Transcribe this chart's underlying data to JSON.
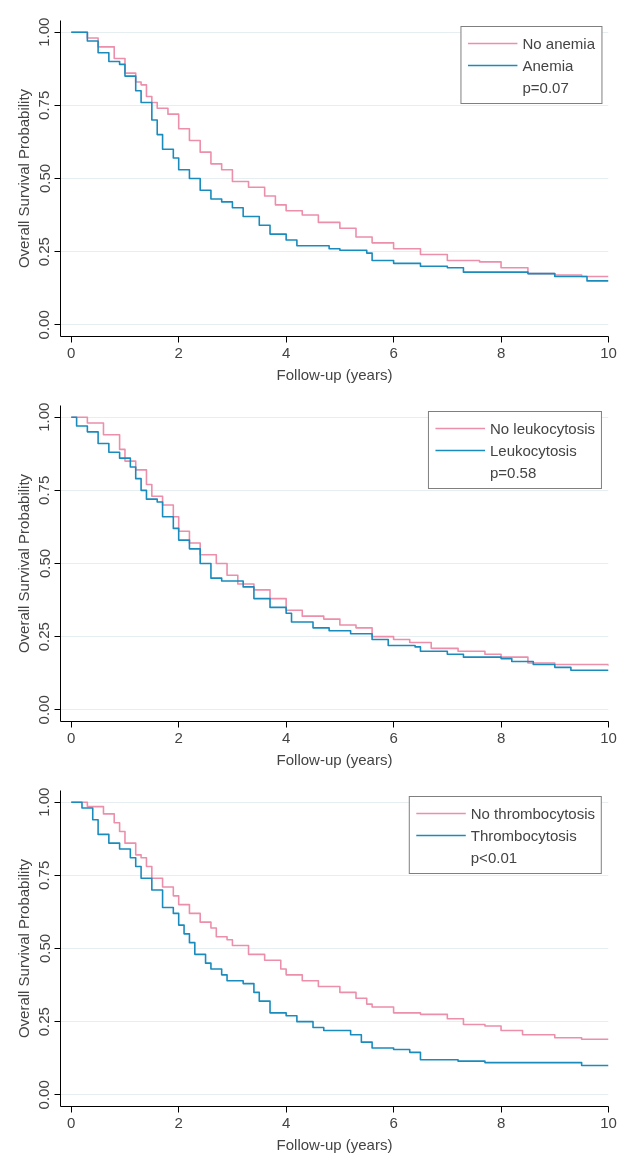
{
  "chart_data": [
    {
      "type": "step",
      "ylabel": "Overall Survival Probability",
      "xlabel": "Follow-up (years)",
      "xlim": [
        -0.2,
        10
      ],
      "ylim": [
        -0.04,
        1.04
      ],
      "xticks": [
        0,
        2,
        4,
        6,
        8,
        10
      ],
      "yticks": [
        {
          "value": 0,
          "label": "0.00"
        },
        {
          "value": 0.25,
          "label": "0.25"
        },
        {
          "value": 0.5,
          "label": "0.50"
        },
        {
          "value": 0.75,
          "label": "0.75"
        },
        {
          "value": 1,
          "label": "1.00"
        }
      ],
      "grid": "y",
      "legend": "top right",
      "annotations": [
        "p=0.07"
      ],
      "series": [
        {
          "name": "No anemia",
          "color": "#ec8fab",
          "x": [
            0,
            0.3,
            0.5,
            0.8,
            1.0,
            1.2,
            1.3,
            1.4,
            1.5,
            1.6,
            1.8,
            2.0,
            2.2,
            2.4,
            2.6,
            2.8,
            3.0,
            3.3,
            3.6,
            3.8,
            4.0,
            4.3,
            4.6,
            5.0,
            5.3,
            5.6,
            6.0,
            6.5,
            7.0,
            7.6,
            8.0,
            8.5,
            9.0,
            9.5,
            10
          ],
          "values": [
            1.0,
            0.98,
            0.95,
            0.91,
            0.86,
            0.83,
            0.82,
            0.78,
            0.76,
            0.74,
            0.72,
            0.67,
            0.63,
            0.59,
            0.55,
            0.53,
            0.49,
            0.47,
            0.44,
            0.41,
            0.39,
            0.375,
            0.35,
            0.33,
            0.3,
            0.28,
            0.26,
            0.24,
            0.22,
            0.215,
            0.195,
            0.175,
            0.17,
            0.165,
            0.165
          ]
        },
        {
          "name": "Anemia",
          "color": "#1a8bbd",
          "x": [
            0,
            0.3,
            0.5,
            0.7,
            0.9,
            1.0,
            1.2,
            1.3,
            1.5,
            1.6,
            1.7,
            1.9,
            2.0,
            2.2,
            2.4,
            2.6,
            2.8,
            3.0,
            3.2,
            3.5,
            3.7,
            4.0,
            4.2,
            4.8,
            5.0,
            5.5,
            5.6,
            6.0,
            6.5,
            7.0,
            7.3,
            8.5,
            9.0,
            9.6,
            10
          ],
          "values": [
            1.0,
            0.97,
            0.93,
            0.9,
            0.89,
            0.85,
            0.8,
            0.76,
            0.7,
            0.65,
            0.6,
            0.57,
            0.53,
            0.5,
            0.46,
            0.43,
            0.42,
            0.4,
            0.37,
            0.34,
            0.31,
            0.29,
            0.27,
            0.26,
            0.255,
            0.245,
            0.22,
            0.21,
            0.2,
            0.195,
            0.18,
            0.175,
            0.165,
            0.15,
            0.15
          ]
        }
      ]
    },
    {
      "type": "step",
      "ylabel": "Overall Survival Probability",
      "xlabel": "Follow-up (years)",
      "xlim": [
        -0.2,
        10
      ],
      "ylim": [
        -0.04,
        1.04
      ],
      "xticks": [
        0,
        2,
        4,
        6,
        8,
        10
      ],
      "yticks": [
        {
          "value": 0,
          "label": "0.00"
        },
        {
          "value": 0.25,
          "label": "0.25"
        },
        {
          "value": 0.5,
          "label": "0.50"
        },
        {
          "value": 0.75,
          "label": "0.75"
        },
        {
          "value": 1,
          "label": "1.00"
        }
      ],
      "grid": "y",
      "legend": "top right",
      "annotations": [
        "p=0.58"
      ],
      "series": [
        {
          "name": "No leukocytosis",
          "color": "#ec8fab",
          "x": [
            0,
            0.3,
            0.6,
            0.9,
            1.0,
            1.2,
            1.4,
            1.5,
            1.7,
            1.9,
            2.0,
            2.2,
            2.4,
            2.7,
            2.9,
            3.1,
            3.4,
            3.7,
            4.0,
            4.3,
            4.7,
            5.0,
            5.3,
            5.6,
            6.0,
            6.3,
            6.7,
            7.2,
            7.7,
            8.0,
            8.5,
            9.0,
            10
          ],
          "values": [
            1.0,
            0.98,
            0.94,
            0.89,
            0.85,
            0.82,
            0.77,
            0.73,
            0.7,
            0.66,
            0.61,
            0.57,
            0.53,
            0.5,
            0.46,
            0.43,
            0.41,
            0.38,
            0.34,
            0.32,
            0.31,
            0.29,
            0.28,
            0.25,
            0.24,
            0.23,
            0.21,
            0.2,
            0.19,
            0.18,
            0.16,
            0.155,
            0.15
          ]
        },
        {
          "name": "Leukocytosis",
          "color": "#1a8bbd",
          "x": [
            0,
            0.1,
            0.3,
            0.5,
            0.7,
            0.9,
            1.1,
            1.2,
            1.3,
            1.4,
            1.6,
            1.7,
            1.9,
            2.0,
            2.2,
            2.4,
            2.6,
            2.8,
            3.2,
            3.4,
            3.7,
            4.0,
            4.1,
            4.5,
            4.8,
            5.2,
            5.6,
            5.9,
            6.4,
            6.5,
            7.0,
            7.3,
            8.0,
            8.2,
            8.6,
            9.0,
            9.3,
            10
          ],
          "values": [
            1.0,
            0.97,
            0.95,
            0.91,
            0.88,
            0.86,
            0.83,
            0.79,
            0.75,
            0.72,
            0.71,
            0.66,
            0.62,
            0.58,
            0.55,
            0.5,
            0.45,
            0.44,
            0.42,
            0.38,
            0.35,
            0.33,
            0.3,
            0.28,
            0.27,
            0.26,
            0.24,
            0.22,
            0.215,
            0.2,
            0.19,
            0.18,
            0.175,
            0.165,
            0.155,
            0.145,
            0.135,
            0.135
          ]
        }
      ]
    },
    {
      "type": "step",
      "ylabel": "Overall Survival Probability",
      "xlabel": "Follow-up (years)",
      "xlim": [
        -0.2,
        10
      ],
      "ylim": [
        -0.04,
        1.04
      ],
      "xticks": [
        0,
        2,
        4,
        6,
        8,
        10
      ],
      "yticks": [
        {
          "value": 0,
          "label": "0.00"
        },
        {
          "value": 0.25,
          "label": "0.25"
        },
        {
          "value": 0.5,
          "label": "0.50"
        },
        {
          "value": 0.75,
          "label": "0.75"
        },
        {
          "value": 1,
          "label": "1.00"
        }
      ],
      "grid": "y",
      "legend": "top right",
      "annotations": [
        "p<0.01"
      ],
      "series": [
        {
          "name": "No thrombocytosis",
          "color": "#ec8fab",
          "x": [
            0,
            0.3,
            0.6,
            0.8,
            0.9,
            1.0,
            1.2,
            1.3,
            1.4,
            1.5,
            1.7,
            1.9,
            2.0,
            2.2,
            2.4,
            2.6,
            2.7,
            2.9,
            3.0,
            3.3,
            3.6,
            3.9,
            4.0,
            4.3,
            4.6,
            5.0,
            5.3,
            5.5,
            5.6,
            6.0,
            6.5,
            7.0,
            7.3,
            7.7,
            8.0,
            8.4,
            9.0,
            9.5,
            10
          ],
          "values": [
            1.0,
            0.985,
            0.96,
            0.93,
            0.9,
            0.86,
            0.82,
            0.81,
            0.78,
            0.74,
            0.71,
            0.68,
            0.65,
            0.62,
            0.59,
            0.57,
            0.54,
            0.53,
            0.51,
            0.48,
            0.46,
            0.43,
            0.41,
            0.39,
            0.37,
            0.35,
            0.33,
            0.31,
            0.3,
            0.28,
            0.275,
            0.26,
            0.24,
            0.235,
            0.22,
            0.205,
            0.195,
            0.19,
            0.19
          ]
        },
        {
          "name": "Thrombocytosis",
          "color": "#1a8bbd",
          "x": [
            0,
            0.2,
            0.4,
            0.5,
            0.7,
            0.9,
            1.1,
            1.2,
            1.3,
            1.5,
            1.7,
            1.9,
            2.0,
            2.1,
            2.2,
            2.3,
            2.5,
            2.6,
            2.8,
            2.9,
            3.2,
            3.4,
            3.5,
            3.7,
            4.0,
            4.2,
            4.5,
            4.7,
            5.2,
            5.4,
            5.6,
            6.0,
            6.3,
            6.5,
            7.0,
            7.2,
            7.7,
            9.4,
            9.5,
            10
          ],
          "values": [
            1.0,
            0.98,
            0.94,
            0.89,
            0.86,
            0.84,
            0.81,
            0.78,
            0.74,
            0.7,
            0.64,
            0.62,
            0.58,
            0.55,
            0.52,
            0.48,
            0.45,
            0.43,
            0.41,
            0.39,
            0.38,
            0.35,
            0.32,
            0.28,
            0.27,
            0.25,
            0.23,
            0.22,
            0.205,
            0.18,
            0.16,
            0.155,
            0.145,
            0.12,
            0.12,
            0.115,
            0.11,
            0.11,
            0.1,
            0.1
          ]
        }
      ]
    }
  ]
}
